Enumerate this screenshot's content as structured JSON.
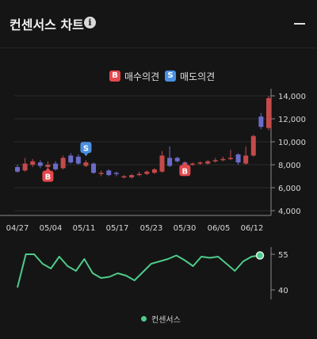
{
  "header": {
    "title": "컨센서스 차트",
    "info_icon": "i",
    "collapse_icon": "minus-icon"
  },
  "legend": {
    "buy_badge": "B",
    "buy_label": "매수의견",
    "buy_color": "#e5484d",
    "sell_badge": "S",
    "sell_label": "매도의견",
    "sell_color": "#4a90e2"
  },
  "bottom_legend": {
    "label": "컨센서스",
    "color": "#4ecb8a"
  },
  "chart_data": [
    {
      "type": "candlestick",
      "y_ticks": [
        "14,000",
        "12,000",
        "10,000",
        "8,000",
        "6,000",
        "4,000"
      ],
      "ylim": [
        4000,
        14500
      ],
      "x_ticks": [
        "04/27",
        "05/04",
        "05/11",
        "05/17",
        "05/23",
        "05/30",
        "06/05",
        "06/12"
      ],
      "up_color": "#c44a4a",
      "down_color": "#6b6bc8",
      "candles": [
        {
          "o": 7800,
          "c": 7400,
          "h": 8000,
          "l": 7300
        },
        {
          "o": 7500,
          "c": 8100,
          "h": 8600,
          "l": 7400
        },
        {
          "o": 8000,
          "c": 8300,
          "h": 8500,
          "l": 7800
        },
        {
          "o": 8200,
          "c": 7900,
          "h": 8400,
          "l": 7700
        },
        {
          "o": 7800,
          "c": 8000,
          "h": 8300,
          "l": 7700
        },
        {
          "o": 8100,
          "c": 7600,
          "h": 8300,
          "l": 7500
        },
        {
          "o": 7700,
          "c": 8600,
          "h": 8800,
          "l": 7600
        },
        {
          "o": 8800,
          "c": 8200,
          "h": 9000,
          "l": 8100
        },
        {
          "o": 8700,
          "c": 8100,
          "h": 8900,
          "l": 8000
        },
        {
          "o": 7900,
          "c": 8200,
          "h": 8400,
          "l": 7800
        },
        {
          "o": 8100,
          "c": 7300,
          "h": 8200,
          "l": 7200
        },
        {
          "o": 7200,
          "c": 7300,
          "h": 7500,
          "l": 7000
        },
        {
          "o": 7500,
          "c": 7100,
          "h": 7600,
          "l": 7000
        },
        {
          "o": 7300,
          "c": 7200,
          "h": 7400,
          "l": 7000
        },
        {
          "o": 6900,
          "c": 7000,
          "h": 7100,
          "l": 6800
        },
        {
          "o": 6900,
          "c": 7100,
          "h": 7200,
          "l": 6800
        },
        {
          "o": 7100,
          "c": 7200,
          "h": 7400,
          "l": 7000
        },
        {
          "o": 7200,
          "c": 7400,
          "h": 7500,
          "l": 7100
        },
        {
          "o": 7300,
          "c": 7600,
          "h": 7700,
          "l": 7200
        },
        {
          "o": 7400,
          "c": 8800,
          "h": 9200,
          "l": 7300
        },
        {
          "o": 8600,
          "c": 7900,
          "h": 9600,
          "l": 7800
        },
        {
          "o": 8600,
          "c": 8300,
          "h": 8700,
          "l": 8200
        },
        {
          "o": 8200,
          "c": 8000,
          "h": 8300,
          "l": 7900
        },
        {
          "o": 8000,
          "c": 8100,
          "h": 8200,
          "l": 7900
        },
        {
          "o": 8100,
          "c": 8200,
          "h": 8300,
          "l": 8000
        },
        {
          "o": 8100,
          "c": 8300,
          "h": 8400,
          "l": 8000
        },
        {
          "o": 8300,
          "c": 8400,
          "h": 8600,
          "l": 8200
        },
        {
          "o": 8400,
          "c": 8500,
          "h": 8700,
          "l": 8300
        },
        {
          "o": 8600,
          "c": 8600,
          "h": 9300,
          "l": 8400
        },
        {
          "o": 8900,
          "c": 8200,
          "h": 9000,
          "l": 8000
        },
        {
          "o": 8100,
          "c": 8800,
          "h": 9600,
          "l": 8000
        },
        {
          "o": 8800,
          "c": 10500,
          "h": 10600,
          "l": 8700
        },
        {
          "o": 12200,
          "c": 11300,
          "h": 12500,
          "l": 11100
        },
        {
          "o": 11200,
          "c": 13800,
          "h": 14000,
          "l": 11000
        }
      ],
      "markers": [
        {
          "type": "buy",
          "label": "B",
          "index": 4,
          "price": 7000
        },
        {
          "type": "sell",
          "label": "S",
          "index": 9,
          "price": 9500
        },
        {
          "type": "buy",
          "label": "B",
          "index": 22,
          "price": 7500
        }
      ]
    },
    {
      "type": "line",
      "name": "컨센서스",
      "y_ticks": [
        "55",
        "40"
      ],
      "ylim": [
        36,
        58
      ],
      "values": [
        41,
        55,
        55,
        51,
        49,
        54,
        50,
        48,
        53,
        47,
        45,
        45.5,
        47,
        46,
        44,
        47.5,
        51,
        52,
        53,
        54.5,
        52.5,
        50,
        54,
        53.5,
        54,
        51,
        48,
        52,
        54,
        54.5
      ],
      "line_color": "#4ecb8a"
    }
  ]
}
